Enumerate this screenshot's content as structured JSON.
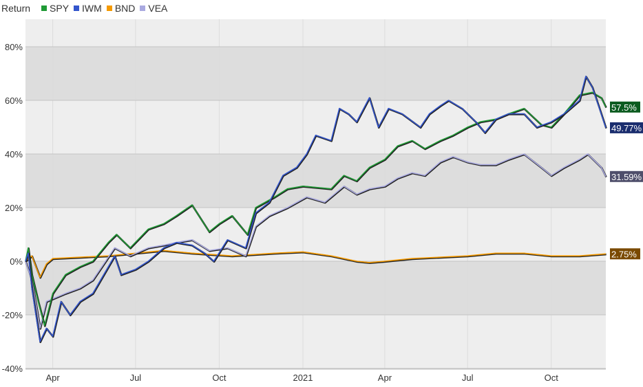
{
  "chart_data": {
    "type": "line",
    "title": "Return",
    "ylabel": "Return",
    "ylim": [
      -40,
      90
    ],
    "yticks": [
      "-40%",
      "-20%",
      "0%",
      "20%",
      "40%",
      "60%",
      "80%"
    ],
    "ytick_values": [
      -40,
      -20,
      0,
      20,
      40,
      60,
      80
    ],
    "xlim": [
      "2020-03-02",
      "2021-11-30"
    ],
    "xticks": [
      {
        "label": "Apr",
        "date": "2020-04-01"
      },
      {
        "label": "Jul",
        "date": "2020-07-01"
      },
      {
        "label": "Oct",
        "date": "2020-10-01"
      },
      {
        "label": "2021",
        "date": "2021-01-01"
      },
      {
        "label": "Apr",
        "date": "2021-04-01"
      },
      {
        "label": "Jul",
        "date": "2021-07-01"
      },
      {
        "label": "Oct",
        "date": "2021-10-01"
      }
    ],
    "legend_position": "top-left",
    "series": [
      {
        "name": "SPY",
        "color": "#1f9a35",
        "label_bg": "#0b5b1f",
        "end_label": "57.5%",
        "points": [
          [
            "2020-03-02",
            0
          ],
          [
            "2020-03-05",
            5
          ],
          [
            "2020-03-09",
            -5
          ],
          [
            "2020-03-16",
            -15
          ],
          [
            "2020-03-23",
            -24
          ],
          [
            "2020-04-01",
            -12
          ],
          [
            "2020-04-15",
            -5
          ],
          [
            "2020-05-01",
            -2
          ],
          [
            "2020-05-15",
            0
          ],
          [
            "2020-06-01",
            7
          ],
          [
            "2020-06-10",
            10
          ],
          [
            "2020-06-25",
            5
          ],
          [
            "2020-07-15",
            12
          ],
          [
            "2020-08-01",
            14
          ],
          [
            "2020-08-15",
            17
          ],
          [
            "2020-09-01",
            21
          ],
          [
            "2020-09-20",
            11
          ],
          [
            "2020-10-01",
            14
          ],
          [
            "2020-10-15",
            17
          ],
          [
            "2020-11-01",
            10
          ],
          [
            "2020-11-10",
            20
          ],
          [
            "2020-12-01",
            24
          ],
          [
            "2020-12-15",
            27
          ],
          [
            "2021-01-01",
            28
          ],
          [
            "2021-02-01",
            27
          ],
          [
            "2021-02-15",
            32
          ],
          [
            "2021-03-01",
            30
          ],
          [
            "2021-03-15",
            35
          ],
          [
            "2021-04-01",
            38
          ],
          [
            "2021-04-15",
            43
          ],
          [
            "2021-05-01",
            45
          ],
          [
            "2021-05-15",
            42
          ],
          [
            "2021-06-01",
            45
          ],
          [
            "2021-06-15",
            47
          ],
          [
            "2021-07-01",
            50
          ],
          [
            "2021-07-15",
            52
          ],
          [
            "2021-08-01",
            53
          ],
          [
            "2021-08-15",
            55
          ],
          [
            "2021-09-01",
            57
          ],
          [
            "2021-09-20",
            51
          ],
          [
            "2021-10-01",
            50
          ],
          [
            "2021-10-15",
            55
          ],
          [
            "2021-11-01",
            62
          ],
          [
            "2021-11-15",
            63
          ],
          [
            "2021-11-25",
            61
          ],
          [
            "2021-11-30",
            57.5
          ]
        ]
      },
      {
        "name": "IWM",
        "color": "#3355cc",
        "label_bg": "#1a2d6e",
        "end_label": "49.77%",
        "points": [
          [
            "2020-03-02",
            0
          ],
          [
            "2020-03-05",
            3
          ],
          [
            "2020-03-09",
            -10
          ],
          [
            "2020-03-18",
            -30
          ],
          [
            "2020-03-25",
            -25
          ],
          [
            "2020-04-01",
            -28
          ],
          [
            "2020-04-10",
            -15
          ],
          [
            "2020-04-20",
            -20
          ],
          [
            "2020-05-01",
            -15
          ],
          [
            "2020-05-15",
            -12
          ],
          [
            "2020-06-08",
            2
          ],
          [
            "2020-06-15",
            -5
          ],
          [
            "2020-07-01",
            -3
          ],
          [
            "2020-07-15",
            0
          ],
          [
            "2020-08-01",
            5
          ],
          [
            "2020-08-15",
            7
          ],
          [
            "2020-09-01",
            6
          ],
          [
            "2020-09-15",
            3
          ],
          [
            "2020-09-25",
            0
          ],
          [
            "2020-10-10",
            8
          ],
          [
            "2020-10-30",
            5
          ],
          [
            "2020-11-10",
            18
          ],
          [
            "2020-11-25",
            22
          ],
          [
            "2020-12-10",
            32
          ],
          [
            "2020-12-25",
            35
          ],
          [
            "2021-01-05",
            40
          ],
          [
            "2021-01-15",
            47
          ],
          [
            "2021-02-01",
            45
          ],
          [
            "2021-02-10",
            57
          ],
          [
            "2021-02-20",
            55
          ],
          [
            "2021-03-01",
            52
          ],
          [
            "2021-03-15",
            61
          ],
          [
            "2021-03-25",
            50
          ],
          [
            "2021-04-05",
            57
          ],
          [
            "2021-04-20",
            55
          ],
          [
            "2021-05-10",
            50
          ],
          [
            "2021-05-20",
            55
          ],
          [
            "2021-06-01",
            58
          ],
          [
            "2021-06-10",
            60
          ],
          [
            "2021-06-25",
            57
          ],
          [
            "2021-07-10",
            52
          ],
          [
            "2021-07-20",
            48
          ],
          [
            "2021-08-01",
            53
          ],
          [
            "2021-08-15",
            55
          ],
          [
            "2021-09-01",
            55
          ],
          [
            "2021-09-15",
            50
          ],
          [
            "2021-10-01",
            52
          ],
          [
            "2021-10-15",
            55
          ],
          [
            "2021-11-01",
            60
          ],
          [
            "2021-11-08",
            69
          ],
          [
            "2021-11-15",
            65
          ],
          [
            "2021-11-22",
            58
          ],
          [
            "2021-11-30",
            49.77
          ]
        ]
      },
      {
        "name": "BND",
        "color": "#f59a00",
        "label_bg": "#7a4a00",
        "end_label": "2.75%",
        "points": [
          [
            "2020-03-02",
            0
          ],
          [
            "2020-03-09",
            2
          ],
          [
            "2020-03-18",
            -6
          ],
          [
            "2020-03-25",
            -1
          ],
          [
            "2020-04-01",
            1
          ],
          [
            "2020-06-01",
            2
          ],
          [
            "2020-08-01",
            4
          ],
          [
            "2020-09-01",
            3
          ],
          [
            "2020-10-15",
            2
          ],
          [
            "2020-12-01",
            3
          ],
          [
            "2021-01-01",
            3.5
          ],
          [
            "2021-02-01",
            2
          ],
          [
            "2021-03-01",
            0
          ],
          [
            "2021-03-15",
            -0.5
          ],
          [
            "2021-04-01",
            0
          ],
          [
            "2021-05-01",
            1
          ],
          [
            "2021-07-01",
            2
          ],
          [
            "2021-08-01",
            3
          ],
          [
            "2021-09-01",
            3
          ],
          [
            "2021-10-01",
            2
          ],
          [
            "2021-11-01",
            2
          ],
          [
            "2021-11-30",
            2.75
          ]
        ]
      },
      {
        "name": "VEA",
        "color": "#a9a9e0",
        "label_bg": "#4f4f6b",
        "end_label": "31.59%",
        "points": [
          [
            "2020-03-02",
            0
          ],
          [
            "2020-03-09",
            -7
          ],
          [
            "2020-03-18",
            -25
          ],
          [
            "2020-03-25",
            -15
          ],
          [
            "2020-04-01",
            -14
          ],
          [
            "2020-04-15",
            -12
          ],
          [
            "2020-05-01",
            -10
          ],
          [
            "2020-05-15",
            -7
          ],
          [
            "2020-06-08",
            5
          ],
          [
            "2020-06-25",
            2
          ],
          [
            "2020-07-15",
            5
          ],
          [
            "2020-08-01",
            6
          ],
          [
            "2020-08-15",
            7
          ],
          [
            "2020-09-01",
            8
          ],
          [
            "2020-09-20",
            4
          ],
          [
            "2020-10-10",
            5
          ],
          [
            "2020-10-30",
            2
          ],
          [
            "2020-11-10",
            13
          ],
          [
            "2020-11-25",
            17
          ],
          [
            "2020-12-15",
            20
          ],
          [
            "2021-01-05",
            24
          ],
          [
            "2021-01-25",
            22
          ],
          [
            "2021-02-15",
            28
          ],
          [
            "2021-03-01",
            25
          ],
          [
            "2021-03-15",
            27
          ],
          [
            "2021-04-01",
            28
          ],
          [
            "2021-04-15",
            31
          ],
          [
            "2021-05-01",
            33
          ],
          [
            "2021-05-15",
            32
          ],
          [
            "2021-06-01",
            37
          ],
          [
            "2021-06-15",
            39
          ],
          [
            "2021-07-01",
            37
          ],
          [
            "2021-07-15",
            36
          ],
          [
            "2021-08-01",
            36
          ],
          [
            "2021-08-15",
            38
          ],
          [
            "2021-09-01",
            40
          ],
          [
            "2021-09-20",
            35
          ],
          [
            "2021-10-01",
            32
          ],
          [
            "2021-10-15",
            35
          ],
          [
            "2021-11-01",
            38
          ],
          [
            "2021-11-10",
            40
          ],
          [
            "2021-11-25",
            35
          ],
          [
            "2021-11-30",
            31.59
          ]
        ]
      }
    ]
  }
}
